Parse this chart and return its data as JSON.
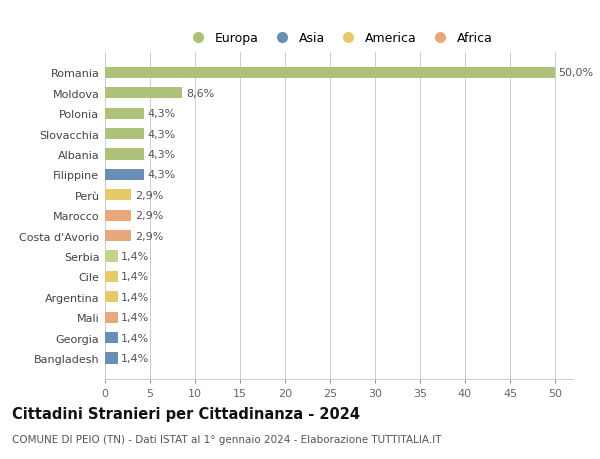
{
  "categories": [
    "Romania",
    "Moldova",
    "Polonia",
    "Slovacchia",
    "Albania",
    "Filippine",
    "Perù",
    "Marocco",
    "Costa d'Avorio",
    "Serbia",
    "Cile",
    "Argentina",
    "Mali",
    "Georgia",
    "Bangladesh"
  ],
  "values": [
    50.0,
    8.6,
    4.3,
    4.3,
    4.3,
    4.3,
    2.9,
    2.9,
    2.9,
    1.4,
    1.4,
    1.4,
    1.4,
    1.4,
    1.4
  ],
  "labels": [
    "50,0%",
    "8,6%",
    "4,3%",
    "4,3%",
    "4,3%",
    "4,3%",
    "2,9%",
    "2,9%",
    "2,9%",
    "1,4%",
    "1,4%",
    "1,4%",
    "1,4%",
    "1,4%",
    "1,4%"
  ],
  "colors": [
    "#adc178",
    "#adc178",
    "#adc178",
    "#adc178",
    "#adc178",
    "#6a8fb5",
    "#e8c96a",
    "#e8a87c",
    "#e8a87c",
    "#c5d48a",
    "#e8c96a",
    "#e8c96a",
    "#e8a87c",
    "#6a8fb5",
    "#6a8fb5"
  ],
  "legend": [
    {
      "label": "Europa",
      "color": "#adc178"
    },
    {
      "label": "Asia",
      "color": "#6a8fb5"
    },
    {
      "label": "America",
      "color": "#e8c96a"
    },
    {
      "label": "Africa",
      "color": "#e8a87c"
    }
  ],
  "xlim": [
    0,
    52
  ],
  "xticks": [
    0,
    5,
    10,
    15,
    20,
    25,
    30,
    35,
    40,
    45,
    50
  ],
  "title": "Cittadini Stranieri per Cittadinanza - 2024",
  "subtitle": "COMUNE DI PEIO (TN) - Dati ISTAT al 1° gennaio 2024 - Elaborazione TUTTITALIA.IT",
  "bg_color": "#ffffff",
  "grid_color": "#cccccc",
  "bar_height": 0.55,
  "label_fontsize": 8.0,
  "tick_fontsize": 8.0,
  "title_fontsize": 10.5,
  "subtitle_fontsize": 7.5
}
